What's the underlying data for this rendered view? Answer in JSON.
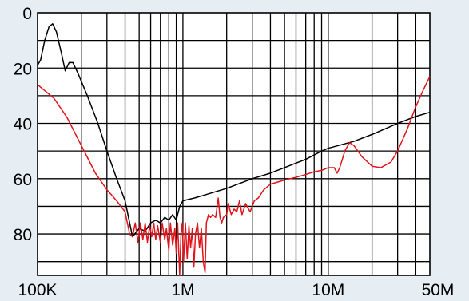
{
  "chart_data": {
    "type": "line",
    "x_scale": "log",
    "xlim": [
      100000,
      50000000
    ],
    "ylim": [
      0,
      95
    ],
    "y_inverted": true,
    "grid": true,
    "y_ticks": [
      {
        "value": 0,
        "label": "0"
      },
      {
        "value": 20,
        "label": "20"
      },
      {
        "value": 40,
        "label": "40"
      },
      {
        "value": 60,
        "label": "60"
      },
      {
        "value": 80,
        "label": "80"
      }
    ],
    "x_ticks": [
      {
        "value": 100000,
        "label": "100K"
      },
      {
        "value": 1000000,
        "label": "1M"
      },
      {
        "value": 10000000,
        "label": "10M"
      },
      {
        "value": 50000000,
        "label": "50M"
      }
    ],
    "series": [
      {
        "color": "#000000",
        "points": [
          [
            100000,
            19
          ],
          [
            105000,
            17
          ],
          [
            112000,
            10
          ],
          [
            120000,
            5
          ],
          [
            127000,
            4
          ],
          [
            135000,
            7
          ],
          [
            145000,
            14
          ],
          [
            155000,
            21
          ],
          [
            165000,
            18
          ],
          [
            175000,
            18
          ],
          [
            190000,
            22
          ],
          [
            220000,
            30
          ],
          [
            260000,
            40
          ],
          [
            300000,
            50
          ],
          [
            350000,
            60
          ],
          [
            400000,
            68
          ],
          [
            430000,
            76
          ],
          [
            450000,
            81
          ],
          [
            500000,
            78
          ],
          [
            550000,
            79
          ],
          [
            600000,
            76
          ],
          [
            650000,
            75
          ],
          [
            700000,
            76
          ],
          [
            750000,
            74
          ],
          [
            800000,
            75
          ],
          [
            850000,
            73
          ],
          [
            900000,
            75
          ],
          [
            950000,
            70
          ],
          [
            1000000,
            68
          ],
          [
            1200000,
            67
          ],
          [
            1500000,
            65.5
          ],
          [
            2000000,
            63.5
          ],
          [
            3000000,
            60
          ],
          [
            4000000,
            58
          ],
          [
            5000000,
            56
          ],
          [
            7000000,
            53
          ],
          [
            9000000,
            50
          ],
          [
            10000000,
            49
          ],
          [
            15000000,
            46.5
          ],
          [
            20000000,
            44
          ],
          [
            30000000,
            40
          ],
          [
            40000000,
            37.5
          ],
          [
            50000000,
            36
          ]
        ]
      },
      {
        "color": "#e0141a",
        "points": [
          [
            100000,
            26
          ],
          [
            130000,
            31
          ],
          [
            160000,
            38
          ],
          [
            200000,
            48
          ],
          [
            250000,
            58
          ],
          [
            300000,
            64
          ],
          [
            350000,
            68
          ],
          [
            400000,
            72
          ],
          [
            430000,
            80
          ],
          [
            450000,
            81
          ],
          [
            470000,
            76
          ],
          [
            490000,
            83
          ],
          [
            510000,
            76
          ],
          [
            530000,
            82
          ],
          [
            550000,
            76
          ],
          [
            570000,
            83
          ],
          [
            590000,
            77
          ],
          [
            610000,
            81
          ],
          [
            630000,
            76
          ],
          [
            650000,
            82
          ],
          [
            670000,
            77
          ],
          [
            700000,
            83
          ],
          [
            720000,
            76
          ],
          [
            750000,
            82
          ],
          [
            770000,
            78
          ],
          [
            800000,
            86
          ],
          [
            820000,
            76
          ],
          [
            850000,
            84
          ],
          [
            880000,
            78
          ],
          [
            900000,
            87
          ],
          [
            920000,
            76
          ],
          [
            950000,
            95
          ],
          [
            970000,
            80
          ],
          [
            990000,
            76
          ],
          [
            1010000,
            90
          ],
          [
            1040000,
            76
          ],
          [
            1070000,
            89
          ],
          [
            1100000,
            77
          ],
          [
            1130000,
            85
          ],
          [
            1160000,
            78
          ],
          [
            1190000,
            92
          ],
          [
            1220000,
            80
          ],
          [
            1260000,
            76
          ],
          [
            1300000,
            85
          ],
          [
            1340000,
            78
          ],
          [
            1380000,
            90
          ],
          [
            1420000,
            94
          ],
          [
            1450000,
            76
          ],
          [
            1500000,
            73
          ],
          [
            1550000,
            74
          ],
          [
            1600000,
            73
          ],
          [
            1680000,
            74
          ],
          [
            1750000,
            67
          ],
          [
            1800000,
            74
          ],
          [
            1850000,
            76
          ],
          [
            1900000,
            74
          ],
          [
            2000000,
            73
          ],
          [
            2050000,
            69
          ],
          [
            2150000,
            73
          ],
          [
            2250000,
            71
          ],
          [
            2350000,
            72
          ],
          [
            2450000,
            68
          ],
          [
            2550000,
            73
          ],
          [
            2700000,
            69
          ],
          [
            2900000,
            72
          ],
          [
            3100000,
            68
          ],
          [
            3300000,
            67
          ],
          [
            3600000,
            64
          ],
          [
            4000000,
            62
          ],
          [
            5000000,
            60.5
          ],
          [
            6000000,
            59.5
          ],
          [
            7000000,
            58.5
          ],
          [
            8000000,
            57.5
          ],
          [
            9000000,
            57
          ],
          [
            10000000,
            56
          ],
          [
            11000000,
            56
          ],
          [
            11500000,
            58
          ],
          [
            12000000,
            56
          ],
          [
            13000000,
            50
          ],
          [
            14000000,
            47
          ],
          [
            15000000,
            48
          ],
          [
            17000000,
            52
          ],
          [
            20000000,
            55.5
          ],
          [
            23000000,
            56
          ],
          [
            27000000,
            54
          ],
          [
            30000000,
            50
          ],
          [
            35000000,
            42
          ],
          [
            40000000,
            34
          ],
          [
            45000000,
            28
          ],
          [
            50000000,
            23
          ]
        ]
      }
    ]
  }
}
